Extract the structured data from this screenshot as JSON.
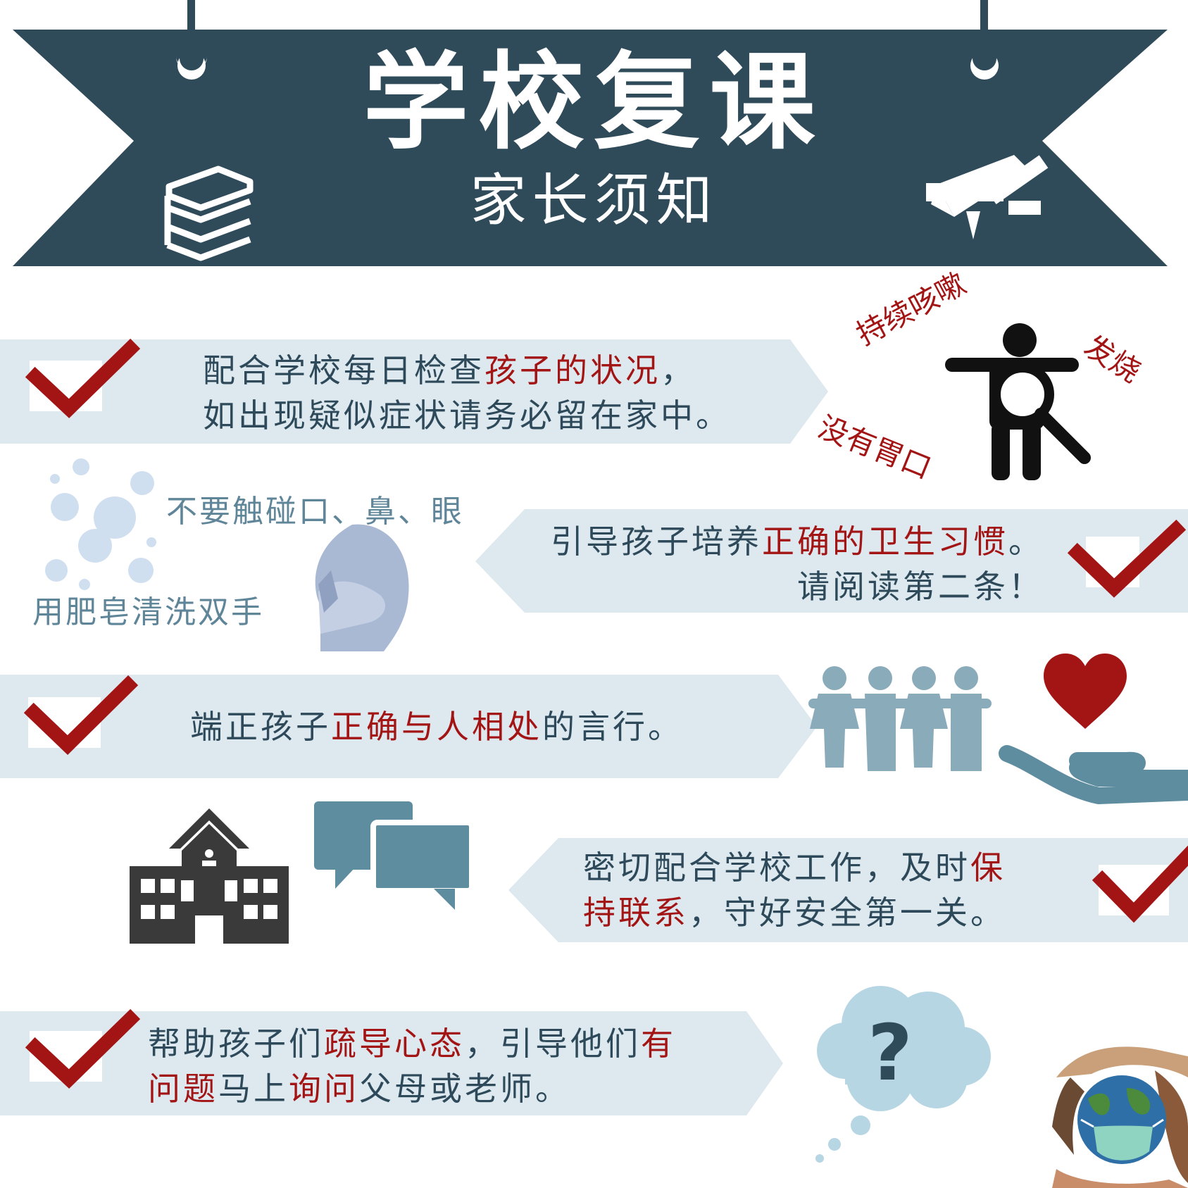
{
  "header": {
    "title": "学校复课",
    "subtitle": "家长须知"
  },
  "items": [
    {
      "lines": [
        [
          {
            "t": "配合学校每日检查",
            "hl": false
          },
          {
            "t": "孩子的状况",
            "hl": true
          },
          {
            "t": "，",
            "hl": false
          }
        ],
        [
          {
            "t": "如出现疑似症状请务必留在家中。",
            "hl": false
          }
        ]
      ]
    },
    {
      "lines": [
        [
          {
            "t": "引导孩子培养",
            "hl": false
          },
          {
            "t": "正确的卫生习惯",
            "hl": true
          },
          {
            "t": "。",
            "hl": false
          }
        ],
        [
          {
            "t": "请阅读第二条！",
            "hl": false
          }
        ]
      ]
    },
    {
      "lines": [
        [
          {
            "t": "端正孩子",
            "hl": false
          },
          {
            "t": "正确与人相处",
            "hl": true
          },
          {
            "t": "的言行。",
            "hl": false
          }
        ]
      ]
    },
    {
      "lines": [
        [
          {
            "t": "密切配合学校工作，及时",
            "hl": false
          },
          {
            "t": "保",
            "hl": true
          }
        ],
        [
          {
            "t": "持联系",
            "hl": true
          },
          {
            "t": "，守好安全第一关。",
            "hl": false
          }
        ]
      ]
    },
    {
      "lines": [
        [
          {
            "t": "帮助孩子们",
            "hl": false
          },
          {
            "t": "疏导心态",
            "hl": true
          },
          {
            "t": "，引导他们",
            "hl": false
          },
          {
            "t": "有",
            "hl": true
          }
        ],
        [
          {
            "t": "问题",
            "hl": true
          },
          {
            "t": "马上",
            "hl": false
          },
          {
            "t": "询问",
            "hl": true
          },
          {
            "t": "父母或老师。",
            "hl": false
          }
        ]
      ]
    }
  ],
  "symptoms": {
    "cough": "持续咳嗽",
    "fever": "发烧",
    "appetite": "没有胃口"
  },
  "hygiene": {
    "no_touch": "不要触碰口、鼻、眼",
    "wash_hands": "用肥皂清洗双手"
  },
  "help": {
    "question_mark": "?"
  },
  "colors": {
    "banner": "#2f4b5a",
    "strip": "#dde9ef",
    "check": "#a31515",
    "highlight": "#a31515",
    "body_text": "#2e4a5a",
    "icon_blue": "#5f8da0",
    "people": "#8aabb9"
  },
  "icons": [
    "books-icon",
    "pencil-ruler-icon",
    "child-magnifier-icon",
    "bubbles-icon",
    "face-cover-icon",
    "people-icon",
    "heart-hand-icon",
    "school-building-icon",
    "chat-bubbles-icon",
    "thought-cloud-icon",
    "globe-mask-icon",
    "checkmark-icon"
  ]
}
